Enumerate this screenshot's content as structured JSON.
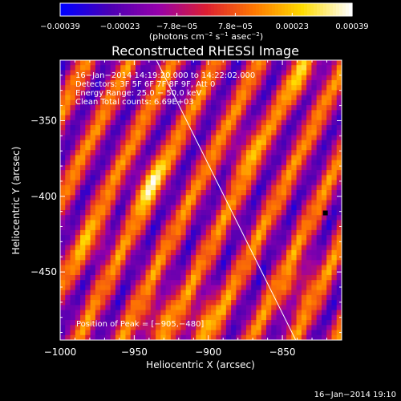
{
  "chart_data": {
    "type": "heatmap",
    "title": "Reconstructed RHESSI Image",
    "xlabel": "Heliocentric X (arcsec)",
    "ylabel": "Heliocentric Y (arcsec)",
    "xlim": [
      -1000,
      -810
    ],
    "ylim": [
      -495,
      -310
    ],
    "x_ticks": [
      -1000,
      -950,
      -900,
      -850
    ],
    "x_tick_labels": [
      "−1000",
      "−950",
      "−900",
      "−850"
    ],
    "y_ticks": [
      -450,
      -400,
      -350
    ],
    "y_tick_labels": [
      "−450",
      "−400",
      "−350"
    ],
    "colorbar": {
      "min": -0.00039,
      "max": 0.00039,
      "tick_values": [
        -0.00039,
        -0.00023,
        -7.8e-05,
        7.8e-05,
        0.00023,
        0.00039
      ],
      "tick_labels": [
        "−0.00039",
        "−0.00023",
        "−7.8e−05",
        "7.8e−05",
        "0.00023",
        "0.00039"
      ],
      "unit_prefix": "(photons cm",
      "unit_exp1": "−2",
      "unit_mid": " s",
      "unit_exp2": "−1",
      "unit_mid2": " asec",
      "unit_exp3": "−2",
      "unit_suffix": ")",
      "colors": [
        "#0000ff",
        "#4b00b4",
        "#9600aa",
        "#dc1e32",
        "#ff7800",
        "#ffdc00",
        "#ffffff"
      ]
    },
    "annotations": [
      "16−Jan−2014 14:19:20.000 to 14:22:02.000",
      "Detectors: 3F 5F 6F 7F 8F 9F, Att 0",
      "Energy Range: 25.0 − 50.0 keV",
      "Clean     Total counts: 6.69E+03"
    ],
    "peak_label": "Position of Peak = [−905,−480]",
    "peak_position": [
      -905,
      -480
    ],
    "marker_position": [
      -821,
      -411
    ],
    "limb_line": [
      [
        -935,
        -310
      ],
      [
        -841,
        -495
      ]
    ],
    "stripe": {
      "angle_deg": 63,
      "period_arcsec": 26,
      "phase_arcsec": 6,
      "bright_spots": [
        {
          "x": -941,
          "y": -391,
          "v": 1.0
        },
        {
          "x": -935,
          "y": -480,
          "v": 0.9
        },
        {
          "x": -905,
          "y": -481,
          "v": 1.0
        },
        {
          "x": -876,
          "y": -370,
          "v": 0.7
        },
        {
          "x": -840,
          "y": -460,
          "v": 0.8
        },
        {
          "x": -835,
          "y": -322,
          "v": 0.7
        },
        {
          "x": -977,
          "y": -432,
          "v": 0.6
        }
      ]
    }
  },
  "footer": {
    "timestamp": "16−Jan−2014 19:10"
  }
}
